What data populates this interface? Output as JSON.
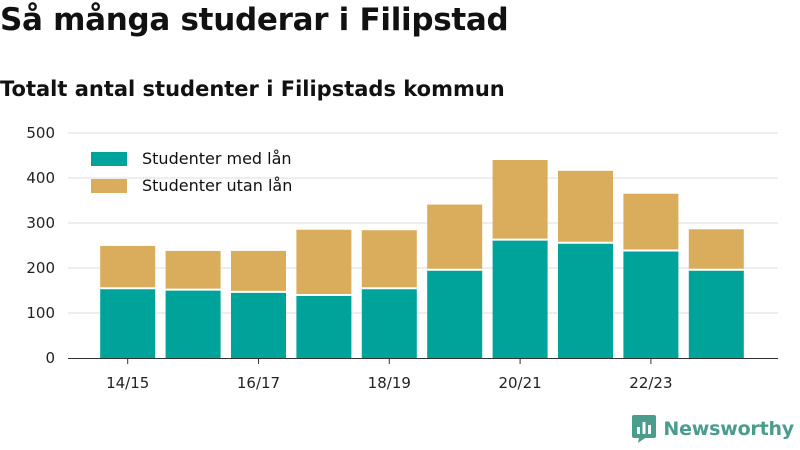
{
  "title": "Så många studerar i Filipstad",
  "subtitle": "Totalt antal studenter i Filipstads kommun",
  "brand": {
    "name": "Newsworthy",
    "icon": "chart-bubble-icon",
    "color": "#4a9c8c"
  },
  "chart_data": {
    "type": "bar",
    "stacked": true,
    "categories": [
      "14/15",
      "15/16",
      "16/17",
      "17/18",
      "18/19",
      "19/20",
      "20/21",
      "21/22",
      "22/23",
      "23/24"
    ],
    "x_tick_labels": [
      "14/15",
      "",
      "16/17",
      "",
      "18/19",
      "",
      "20/21",
      "",
      "22/23",
      ""
    ],
    "series": [
      {
        "name": "Studenter med lån",
        "color": "#00a399",
        "values": [
          155,
          152,
          147,
          140,
          155,
          196,
          263,
          256,
          239,
          196
        ]
      },
      {
        "name": "Studenter utan lån",
        "color": "#d9ad5c",
        "values": [
          94,
          86,
          91,
          145,
          129,
          145,
          177,
          160,
          126,
          90
        ]
      }
    ],
    "ylim": [
      0,
      500
    ],
    "yticks": [
      0,
      100,
      200,
      300,
      400,
      500
    ],
    "grid": true,
    "legend_position": "top-left"
  }
}
